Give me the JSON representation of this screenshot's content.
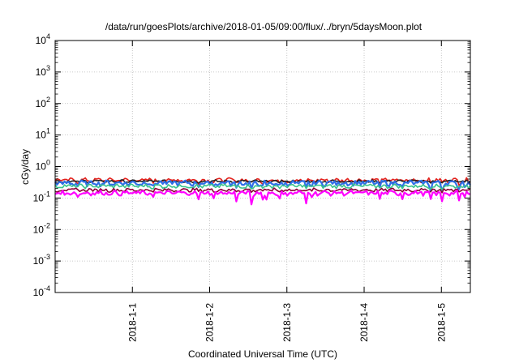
{
  "chart_data": {
    "type": "line",
    "title": "/data/run/goesPlots/archive/2018-01-05/09:00/flux/../bryn/5daysMoon.plot",
    "xlabel": "Coordinated Universal Time (UTC)",
    "ylabel": "cGy/day",
    "y_scale": "log",
    "ylim": [
      0.0001,
      10000
    ],
    "y_ticks": [
      {
        "value": 0.0001,
        "base": "10",
        "exp": "-4"
      },
      {
        "value": 0.001,
        "base": "10",
        "exp": "-3"
      },
      {
        "value": 0.01,
        "base": "10",
        "exp": "-2"
      },
      {
        "value": 0.1,
        "base": "10",
        "exp": "-1"
      },
      {
        "value": 1,
        "base": "10",
        "exp": "0"
      },
      {
        "value": 10,
        "base": "10",
        "exp": "1"
      },
      {
        "value": 100,
        "base": "10",
        "exp": "2"
      },
      {
        "value": 1000,
        "base": "10",
        "exp": "3"
      },
      {
        "value": 10000,
        "base": "10",
        "exp": "4"
      }
    ],
    "xlim": [
      "2017-12-31 00:00",
      "2018-01-05 09:00"
    ],
    "x_ticks": [
      {
        "value": "2018-01-01 00:00",
        "label": "2018-1-1"
      },
      {
        "value": "2018-01-02 00:00",
        "label": "2018-1-2"
      },
      {
        "value": "2018-01-03 00:00",
        "label": "2018-1-3"
      },
      {
        "value": "2018-01-04 00:00",
        "label": "2018-1-4"
      },
      {
        "value": "2018-01-05 00:00",
        "label": "2018-1-5"
      }
    ],
    "grid": true,
    "series": [
      {
        "color": "#e3201b",
        "base": 0.37,
        "amp": 0.05,
        "dip": 0.8
      },
      {
        "color": "#222222",
        "base": 0.34,
        "amp": 0.03,
        "dip": 0.92
      },
      {
        "color": "#2f6fe8",
        "base": 0.3,
        "amp": 0.05,
        "dip": 0.6
      },
      {
        "color": "#39c48c",
        "base": 0.24,
        "amp": 0.03,
        "dip": 0.85
      },
      {
        "color": "#8b0038",
        "base": 0.18,
        "amp": 0.02,
        "dip": 0.9
      },
      {
        "color": "#ff00ff",
        "base": 0.145,
        "amp": 0.02,
        "dip": 0.45
      }
    ]
  }
}
